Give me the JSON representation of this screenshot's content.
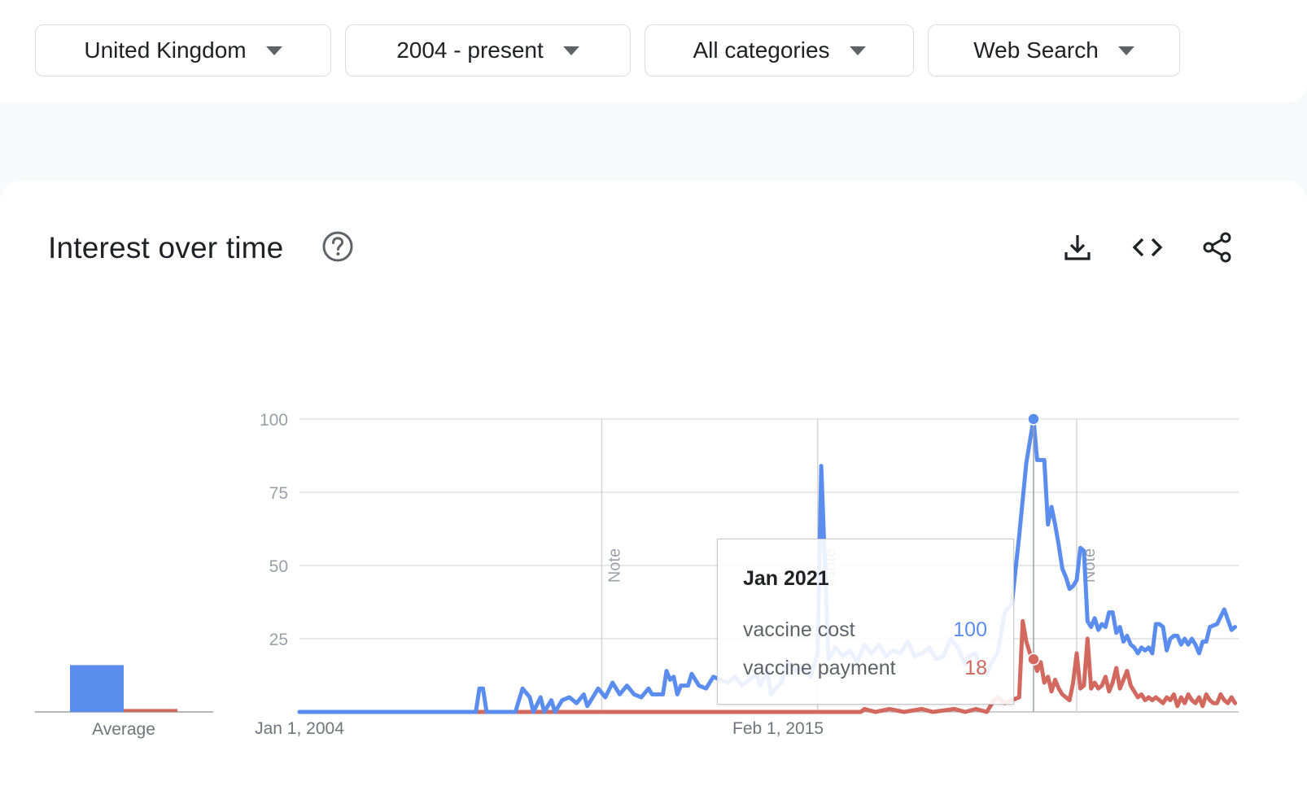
{
  "filters": [
    {
      "label": "United Kingdom"
    },
    {
      "label": "2004 - present"
    },
    {
      "label": "All categories"
    },
    {
      "label": "Web Search"
    }
  ],
  "card": {
    "title": "Interest over time",
    "icons": [
      "help-icon",
      "download-icon",
      "embed-code-icon",
      "share-icon"
    ]
  },
  "tooltip": {
    "date": "Jan 2021",
    "rows": [
      {
        "name": "vaccine cost",
        "value": "100",
        "color": "#5b8def"
      },
      {
        "name": "vaccine payment",
        "value": "18",
        "color": "#d2685e"
      }
    ]
  },
  "colors": {
    "series1": "#5b8def",
    "series2": "#d2685e",
    "grid": "#e0e0e0"
  },
  "chart_data": {
    "type": "line",
    "ylim": [
      0,
      100
    ],
    "yticks": [
      "100",
      "75",
      "50",
      "25"
    ],
    "xtick_labels": [
      {
        "date": "2004-01",
        "label": "Jan 1, 2004"
      },
      {
        "date": "2015-02",
        "label": "Feb 1, 2015"
      }
    ],
    "x_range": [
      "2004-01",
      "2025-10"
    ],
    "notes": [
      {
        "date": "2011-01",
        "label": "Note"
      },
      {
        "date": "2016-01",
        "label": "Note"
      },
      {
        "date": "2022-01",
        "label": "Note"
      }
    ],
    "grid": true,
    "average": {
      "label": "Average",
      "values": [
        16,
        1
      ]
    },
    "series": [
      {
        "name": "vaccine cost",
        "color": "#5b8def",
        "points": [
          [
            "2004-01",
            0
          ],
          [
            "2008-01",
            0
          ],
          [
            "2008-02",
            0
          ],
          [
            "2008-03",
            8
          ],
          [
            "2008-04",
            8
          ],
          [
            "2008-05",
            0
          ],
          [
            "2009-01",
            0
          ],
          [
            "2009-03",
            8
          ],
          [
            "2009-05",
            5
          ],
          [
            "2009-06",
            0
          ],
          [
            "2009-08",
            5
          ],
          [
            "2009-09",
            0
          ],
          [
            "2009-11",
            4
          ],
          [
            "2009-12",
            0
          ],
          [
            "2010-02",
            4
          ],
          [
            "2010-04",
            5
          ],
          [
            "2010-06",
            3
          ],
          [
            "2010-08",
            6
          ],
          [
            "2010-09",
            2
          ],
          [
            "2010-11",
            6
          ],
          [
            "2010-12",
            8
          ],
          [
            "2011-02",
            5
          ],
          [
            "2011-04",
            10
          ],
          [
            "2011-06",
            6
          ],
          [
            "2011-08",
            9
          ],
          [
            "2011-10",
            6
          ],
          [
            "2011-12",
            5
          ],
          [
            "2012-02",
            8
          ],
          [
            "2012-03",
            6
          ],
          [
            "2012-05",
            6
          ],
          [
            "2012-06",
            6
          ],
          [
            "2012-07",
            14
          ],
          [
            "2012-08",
            11
          ],
          [
            "2012-09",
            12
          ],
          [
            "2012-10",
            6
          ],
          [
            "2012-11",
            9
          ],
          [
            "2013-01",
            9
          ],
          [
            "2013-02",
            13
          ],
          [
            "2013-04",
            9
          ],
          [
            "2013-06",
            8
          ],
          [
            "2013-08",
            12
          ],
          [
            "2013-10",
            11
          ],
          [
            "2013-12",
            10
          ],
          [
            "2014-02",
            12
          ],
          [
            "2014-04",
            9
          ],
          [
            "2014-06",
            11
          ],
          [
            "2014-08",
            13
          ],
          [
            "2014-09",
            9
          ],
          [
            "2014-11",
            14
          ],
          [
            "2014-12",
            6
          ],
          [
            "2015-02",
            9
          ],
          [
            "2015-03",
            10
          ],
          [
            "2015-04",
            15
          ],
          [
            "2015-05",
            17
          ],
          [
            "2015-07",
            14
          ],
          [
            "2015-09",
            15
          ],
          [
            "2015-11",
            12
          ],
          [
            "2016-01",
            20
          ],
          [
            "2016-02",
            84
          ],
          [
            "2016-04",
            18
          ],
          [
            "2016-06",
            22
          ],
          [
            "2016-08",
            19
          ],
          [
            "2016-10",
            21
          ],
          [
            "2016-12",
            17
          ],
          [
            "2017-02",
            23
          ],
          [
            "2017-04",
            20
          ],
          [
            "2017-06",
            23
          ],
          [
            "2017-08",
            19
          ],
          [
            "2017-10",
            21
          ],
          [
            "2017-12",
            20
          ],
          [
            "2018-02",
            24
          ],
          [
            "2018-04",
            19
          ],
          [
            "2018-06",
            20
          ],
          [
            "2018-08",
            22
          ],
          [
            "2018-10",
            18
          ],
          [
            "2018-12",
            19
          ],
          [
            "2019-02",
            25
          ],
          [
            "2019-04",
            22
          ],
          [
            "2019-06",
            16
          ],
          [
            "2019-07",
            19
          ],
          [
            "2019-09",
            20
          ],
          [
            "2019-10",
            14
          ],
          [
            "2019-12",
            13
          ],
          [
            "2020-01",
            16
          ],
          [
            "2020-03",
            20
          ],
          [
            "2020-05",
            34
          ],
          [
            "2020-07",
            37
          ],
          [
            "2020-09",
            60
          ],
          [
            "2020-11",
            85
          ],
          [
            "2021-01",
            100
          ],
          [
            "2021-02",
            86
          ],
          [
            "2021-04",
            86
          ],
          [
            "2021-05",
            64
          ],
          [
            "2021-06",
            70
          ],
          [
            "2021-07",
            64
          ],
          [
            "2021-08",
            57
          ],
          [
            "2021-09",
            49
          ],
          [
            "2021-10",
            46
          ],
          [
            "2021-11",
            42
          ],
          [
            "2021-12",
            43
          ],
          [
            "2022-01",
            45
          ],
          [
            "2022-02",
            56
          ],
          [
            "2022-03",
            55
          ],
          [
            "2022-04",
            31
          ],
          [
            "2022-05",
            29
          ],
          [
            "2022-06",
            32
          ],
          [
            "2022-07",
            28
          ],
          [
            "2022-08",
            30
          ],
          [
            "2022-09",
            29
          ],
          [
            "2022-10",
            34
          ],
          [
            "2022-11",
            34
          ],
          [
            "2022-12",
            27
          ],
          [
            "2023-01",
            29
          ],
          [
            "2023-02",
            24
          ],
          [
            "2023-03",
            26
          ],
          [
            "2023-04",
            23
          ],
          [
            "2023-05",
            22
          ],
          [
            "2023-06",
            20
          ],
          [
            "2023-07",
            22
          ],
          [
            "2023-08",
            21
          ],
          [
            "2023-09",
            22
          ],
          [
            "2023-10",
            20
          ],
          [
            "2023-11",
            30
          ],
          [
            "2023-12",
            30
          ],
          [
            "2024-01",
            29
          ],
          [
            "2024-02",
            21
          ],
          [
            "2024-03",
            25
          ],
          [
            "2024-04",
            26
          ],
          [
            "2024-05",
            26
          ],
          [
            "2024-06",
            23
          ],
          [
            "2024-07",
            25
          ],
          [
            "2024-08",
            23
          ],
          [
            "2024-09",
            25
          ],
          [
            "2024-10",
            23
          ],
          [
            "2024-11",
            20
          ],
          [
            "2024-12",
            24
          ],
          [
            "2025-01",
            24
          ],
          [
            "2025-02",
            29
          ],
          [
            "2025-04",
            30
          ],
          [
            "2025-06",
            35
          ],
          [
            "2025-08",
            28
          ],
          [
            "2025-09",
            29
          ]
        ]
      },
      {
        "name": "vaccine payment",
        "color": "#d2685e",
        "points": [
          [
            "2004-01",
            0
          ],
          [
            "2016-01",
            0
          ],
          [
            "2017-01",
            0
          ],
          [
            "2017-02",
            1
          ],
          [
            "2017-05",
            0
          ],
          [
            "2017-09",
            1
          ],
          [
            "2018-01",
            0
          ],
          [
            "2018-06",
            1
          ],
          [
            "2018-09",
            0
          ],
          [
            "2019-03",
            1
          ],
          [
            "2019-06",
            0
          ],
          [
            "2019-09",
            1
          ],
          [
            "2019-12",
            0
          ],
          [
            "2020-01",
            2
          ],
          [
            "2020-02",
            4
          ],
          [
            "2020-03",
            5
          ],
          [
            "2020-05",
            3
          ],
          [
            "2020-07",
            4
          ],
          [
            "2020-09",
            5
          ],
          [
            "2020-10",
            31
          ],
          [
            "2020-11",
            24
          ],
          [
            "2020-12",
            20
          ],
          [
            "2021-01",
            18
          ],
          [
            "2021-02",
            14
          ],
          [
            "2021-03",
            17
          ],
          [
            "2021-04",
            10
          ],
          [
            "2021-05",
            12
          ],
          [
            "2021-06",
            7
          ],
          [
            "2021-07",
            11
          ],
          [
            "2021-08",
            8
          ],
          [
            "2021-09",
            6
          ],
          [
            "2021-10",
            5
          ],
          [
            "2021-11",
            4
          ],
          [
            "2021-12",
            10
          ],
          [
            "2022-01",
            20
          ],
          [
            "2022-02",
            8
          ],
          [
            "2022-03",
            9
          ],
          [
            "2022-04",
            25
          ],
          [
            "2022-05",
            8
          ],
          [
            "2022-06",
            10
          ],
          [
            "2022-07",
            8
          ],
          [
            "2022-08",
            9
          ],
          [
            "2022-09",
            12
          ],
          [
            "2022-10",
            7
          ],
          [
            "2022-11",
            10
          ],
          [
            "2022-12",
            15
          ],
          [
            "2023-01",
            8
          ],
          [
            "2023-02",
            11
          ],
          [
            "2023-03",
            14
          ],
          [
            "2023-04",
            9
          ],
          [
            "2023-05",
            7
          ],
          [
            "2023-06",
            5
          ],
          [
            "2023-07",
            6
          ],
          [
            "2023-08",
            4
          ],
          [
            "2023-09",
            5
          ],
          [
            "2023-10",
            4
          ],
          [
            "2023-11",
            5
          ],
          [
            "2023-12",
            4
          ],
          [
            "2024-01",
            3
          ],
          [
            "2024-02",
            5
          ],
          [
            "2024-03",
            4
          ],
          [
            "2024-04",
            6
          ],
          [
            "2024-05",
            2
          ],
          [
            "2024-06",
            5
          ],
          [
            "2024-07",
            3
          ],
          [
            "2024-08",
            6
          ],
          [
            "2024-09",
            4
          ],
          [
            "2024-10",
            3
          ],
          [
            "2024-11",
            5
          ],
          [
            "2024-12",
            2
          ],
          [
            "2025-01",
            6
          ],
          [
            "2025-02",
            4
          ],
          [
            "2025-03",
            3
          ],
          [
            "2025-04",
            3
          ],
          [
            "2025-05",
            6
          ],
          [
            "2025-06",
            4
          ],
          [
            "2025-07",
            3
          ],
          [
            "2025-08",
            5
          ],
          [
            "2025-09",
            3
          ]
        ]
      }
    ],
    "highlight": {
      "date": "2021-01",
      "values": [
        100,
        18
      ]
    }
  }
}
